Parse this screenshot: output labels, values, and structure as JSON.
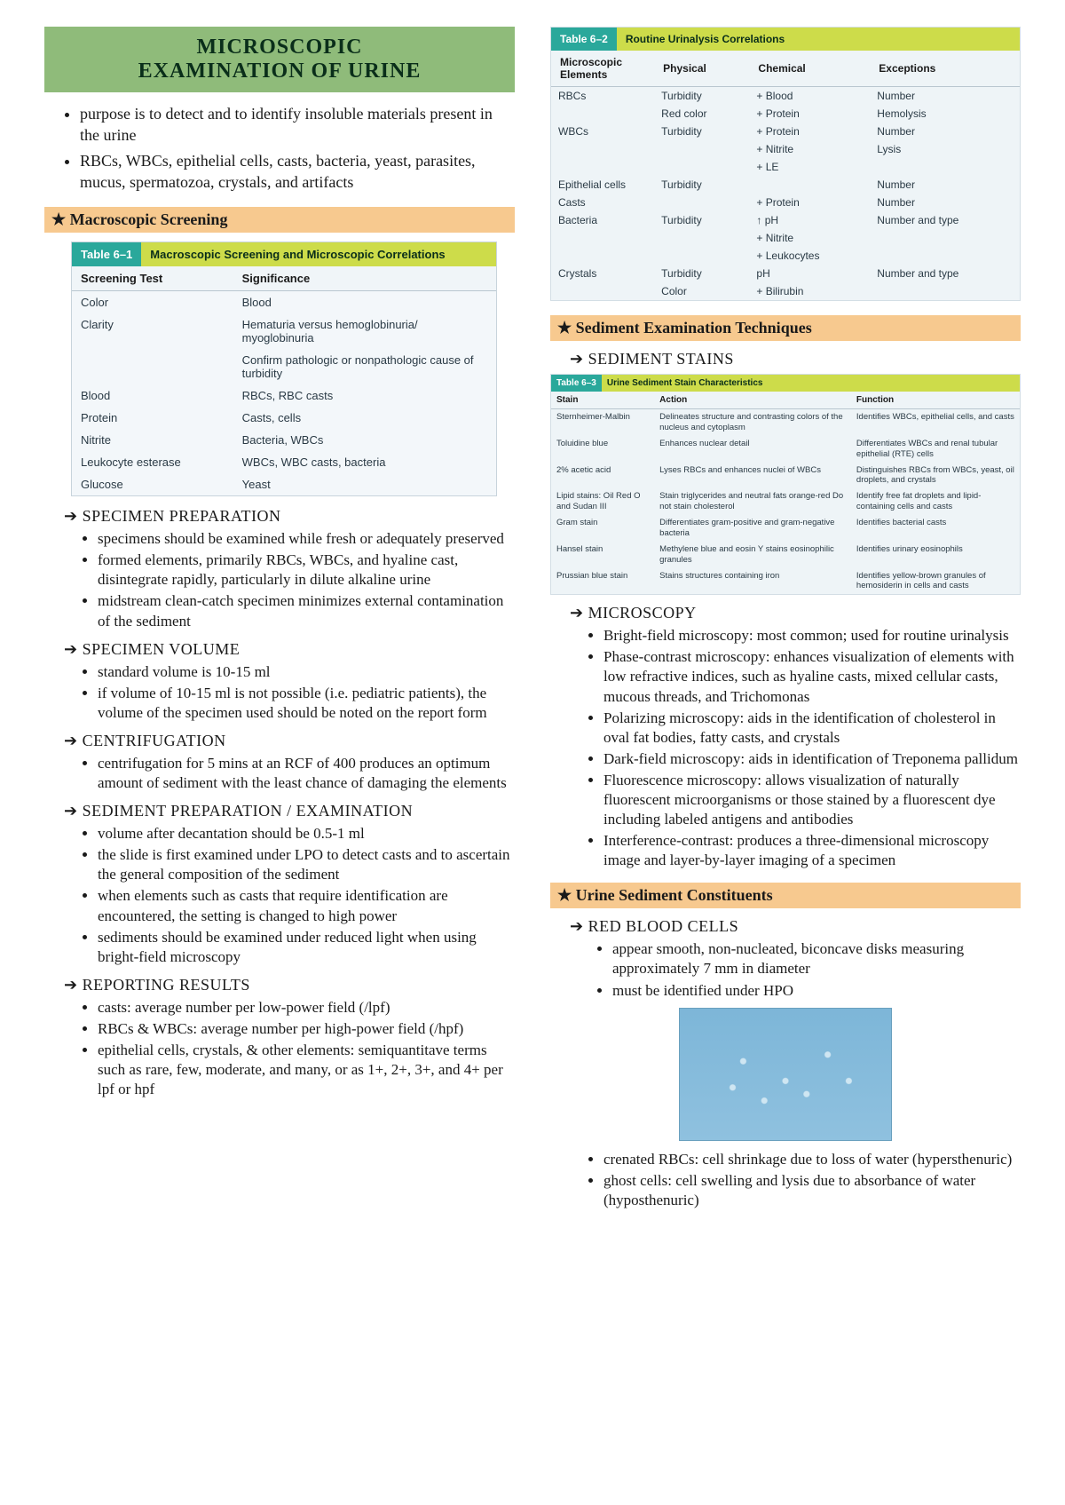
{
  "title_line1": "MICROSCOPIC",
  "title_line2": "EXAMINATION OF URINE",
  "intro": [
    "purpose is to detect and to identify insoluble materials present in the urine",
    "RBCs, WBCs, epithelial cells, casts, bacteria, yeast, parasites, mucus, spermatozoa, crystals, and artifacts"
  ],
  "sec_macro": "Macroscopic Screening",
  "t61": {
    "tag": "Table 6–1",
    "title": "Macroscopic Screening and Microscopic Correlations",
    "head": [
      "Screening Test",
      "Significance"
    ],
    "rows": [
      [
        "Color",
        "Blood"
      ],
      [
        "Clarity",
        "Hematuria versus hemoglobinuria/ myoglobinuria"
      ],
      [
        "",
        "Confirm pathologic or nonpathologic cause of turbidity"
      ],
      [
        "Blood",
        "RBCs, RBC casts"
      ],
      [
        "Protein",
        "Casts, cells"
      ],
      [
        "Nitrite",
        "Bacteria, WBCs"
      ],
      [
        "Leukocyte esterase",
        "WBCs, WBC casts, bacteria"
      ],
      [
        "Glucose",
        "Yeast"
      ]
    ]
  },
  "sub_specprep": "SPECIMEN PREPARATION",
  "specprep": [
    "specimens should be examined while fresh or adequately preserved",
    "formed elements, primarily RBCs, WBCs, and hyaline cast, disintegrate rapidly, particularly in dilute alkaline urine",
    "midstream clean-catch specimen minimizes external contamination of the sediment"
  ],
  "sub_specvol": "SPECIMEN VOLUME",
  "specvol": [
    "standard volume is 10-15 ml",
    "if volume of 10-15 ml is not possible (i.e. pediatric patients), the volume of the specimen used should be noted on the report form"
  ],
  "sub_centr": "CENTRIFUGATION",
  "centr": [
    "centrifugation for 5 mins at an RCF of 400 produces an optimum amount of sediment with the least chance of damaging the elements"
  ],
  "sub_sedprep": "SEDIMENT PREPARATION / EXAMINATION",
  "sedprep": [
    "volume after decantation should be 0.5-1 ml",
    "the slide is first examined under LPO to detect casts and to ascertain the general composition of the sediment",
    "when elements such as casts that require identification are encountered, the setting is changed to high power",
    "sediments should be examined under reduced light when using bright-field microscopy"
  ],
  "sub_report": "REPORTING RESULTS",
  "report": [
    "casts: average number per low-power field (/lpf)",
    "RBCs & WBCs: average number per high-power field (/hpf)",
    "epithelial cells, crystals, & other elements: semiquantitave terms such as rare, few, moderate, and many, or as 1+, 2+, 3+, and 4+ per lpf or hpf"
  ],
  "t62": {
    "tag": "Table 6–2",
    "title": "Routine Urinalysis Correlations",
    "head": [
      "Microscopic Elements",
      "Physical",
      "Chemical",
      "Exceptions"
    ],
    "rows": [
      [
        "RBCs",
        "Turbidity",
        "+ Blood",
        "Number"
      ],
      [
        "",
        "Red color",
        "+ Protein",
        "Hemolysis"
      ],
      [
        "WBCs",
        "Turbidity",
        "+ Protein",
        "Number"
      ],
      [
        "",
        "",
        "+ Nitrite",
        "Lysis"
      ],
      [
        "",
        "",
        "+ LE",
        ""
      ],
      [
        "Epithelial cells",
        "Turbidity",
        "",
        "Number"
      ],
      [
        "Casts",
        "",
        "+ Protein",
        "Number"
      ],
      [
        "Bacteria",
        "Turbidity",
        "↑ pH",
        "Number and type"
      ],
      [
        "",
        "",
        "+ Nitrite",
        ""
      ],
      [
        "",
        "",
        "+ Leukocytes",
        ""
      ],
      [
        "Crystals",
        "Turbidity",
        "pH",
        "Number and type"
      ],
      [
        "",
        "Color",
        "+ Bilirubin",
        ""
      ]
    ]
  },
  "sec_sedexam": "Sediment Examination Techniques",
  "sub_stains": "SEDIMENT STAINS",
  "t63": {
    "tag": "Table 6–3",
    "title": "Urine Sediment Stain Characteristics",
    "head": [
      "Stain",
      "Action",
      "Function"
    ],
    "rows": [
      [
        "Sternheimer-Malbin",
        "Delineates structure and contrasting colors of the nucleus and cytoplasm",
        "Identifies WBCs, epithelial cells, and casts"
      ],
      [
        "Toluidine blue",
        "Enhances nuclear detail",
        "Differentiates WBCs and renal tubular epithelial (RTE) cells"
      ],
      [
        "2% acetic acid",
        "Lyses RBCs and enhances nuclei of WBCs",
        "Distinguishes RBCs from WBCs, yeast, oil droplets, and crystals"
      ],
      [
        "Lipid stains: Oil Red O and Sudan III",
        "Stain triglycerides and neutral fats orange-red\nDo not stain cholesterol",
        "Identify free fat droplets and lipid-containing cells and casts"
      ],
      [
        "Gram stain",
        "Differentiates gram-positive and gram-negative bacteria",
        "Identifies bacterial casts"
      ],
      [
        "Hansel stain",
        "Methylene blue and eosin Y stains eosinophilic granules",
        "Identifies urinary eosinophils"
      ],
      [
        "Prussian blue stain",
        "Stains structures containing iron",
        "Identifies yellow-brown granules of hemosiderin in cells and casts"
      ]
    ]
  },
  "sub_micro": "MICROSCOPY",
  "micro": [
    "Bright-field microscopy: most common; used for routine urinalysis",
    "Phase-contrast microscopy: enhances visualization of elements with low refractive indices, such as hyaline casts, mixed cellular casts, mucous threads, and Trichomonas",
    "Polarizing microscopy: aids in the identification of cholesterol in oval fat bodies, fatty casts, and crystals",
    "Dark-field microscopy: aids in identification of Treponema pallidum",
    "Fluorescence microscopy: allows visualization of naturally fluorescent microorganisms or those stained by a fluorescent dye including labeled antigens and antibodies",
    "Interference-contrast: produces a three-dimensional microscopy image and layer-by-layer imaging of a specimen"
  ],
  "sec_constituents": "Urine Sediment Constituents",
  "sub_rbc": "RED BLOOD CELLS",
  "rbc_a": [
    "appear smooth, non-nucleated, biconcave disks measuring approximately 7 mm in diameter",
    "must be identified under HPO"
  ],
  "rbc_b": [
    "crenated RBCs: cell shrinkage due to loss of water (hypersthenuric)",
    "ghost cells: cell swelling and lysis due to absorbance of water (hyposthenuric)"
  ],
  "colors": {
    "title_bg": "#8fbb7a",
    "section_bg": "#f7c98f",
    "tbl_tag_bg": "#2aa89b",
    "tbl_title_bg": "#cddc4a",
    "tbl_body_bg": "#f3f7fa"
  }
}
